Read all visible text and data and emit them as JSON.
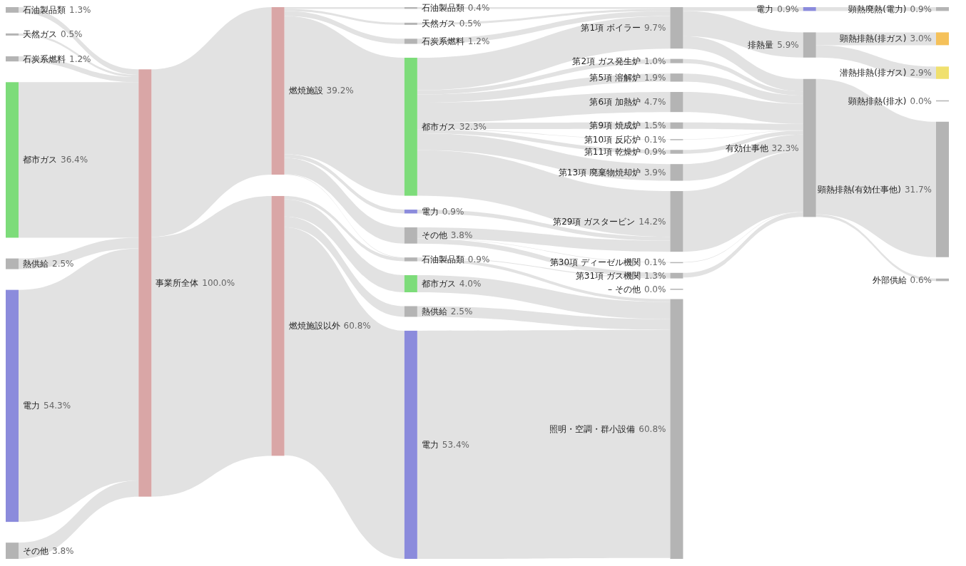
{
  "chart_data": {
    "type": "other",
    "categories": [
      "石油製品類",
      "天然ガス",
      "石炭系燃料",
      "都市ガス",
      "熱供給",
      "電力",
      "その他",
      "事業所全体",
      "燃焼施設",
      "燃焼施設以外",
      "石油製品類",
      "天然ガス",
      "石炭系燃料",
      "都市ガス",
      "電力",
      "その他",
      "石油製品類",
      "都市ガス",
      "熱供給",
      "電力",
      "第1項 ボイラー",
      "第2項 ガス発生炉",
      "第5項 溶解炉",
      "第6項 加熱炉",
      "第9項 焼成炉",
      "第10項 反応炉",
      "第11項 乾燥炉",
      "第13項 廃棄物焼却炉",
      "第29項 ガスタービン",
      "第30項 ディーゼル機関",
      "第31項 ガス機関",
      "– その他",
      "照明・空調・群小設備",
      "電力",
      "排熱量",
      "有効仕事他",
      "顕熱廃熱(電力)",
      "顕熱排熱(排ガス)",
      "潜熱排熱(排ガス)",
      "顕熱排熱(排水)",
      "顕熱排熱(有効仕事他)",
      "外部供給"
    ],
    "colors": [
      "#b4b4b4",
      "#b4b4b4",
      "#b4b4b4",
      "#7ddc7a",
      "#b4b4b4",
      "#8b8bdc",
      "#b4b4b4",
      "#d9a6a6",
      "#d9a6a6",
      "#d9a6a6",
      "#b4b4b4",
      "#b4b4b4",
      "#b4b4b4",
      "#7ddc7a",
      "#8b8bdc",
      "#b4b4b4",
      "#b4b4b4",
      "#7ddc7a",
      "#b4b4b4",
      "#8b8bdc",
      "#b4b4b4",
      "#b4b4b4",
      "#b4b4b4",
      "#b4b4b4",
      "#b4b4b4",
      "#b4b4b4",
      "#b4b4b4",
      "#b4b4b4",
      "#b4b4b4",
      "#b4b4b4",
      "#b4b4b4",
      "#b4b4b4",
      "#b4b4b4",
      "#8b8bdc",
      "#b4b4b4",
      "#b4b4b4",
      "#b4b4b4",
      "#f5c15a",
      "#f0e06e",
      "#b4b4b4",
      "#b4b4b4",
      "#b4b4b4"
    ],
    "series": [
      {
        "values": [
          1.3,
          0.5,
          1.2,
          36.4,
          2.5,
          54.3,
          3.8,
          null,
          null,
          null,
          null,
          null,
          null,
          null,
          null,
          null,
          null,
          null,
          null,
          null,
          null,
          null,
          null,
          null,
          null,
          null,
          null,
          null,
          null,
          null,
          null,
          null,
          null,
          null,
          null,
          null,
          null,
          null,
          null,
          null,
          null,
          null
        ],
        "value_labels": [
          "1.3%",
          "0.5%",
          "1.2%",
          "36.4%",
          "2.5%",
          "54.3%",
          "3.8%",
          null,
          null,
          null,
          null,
          null,
          null,
          null,
          null,
          null,
          null,
          null,
          null,
          null,
          null,
          null,
          null,
          null,
          null,
          null,
          null,
          null,
          null,
          null,
          null,
          null,
          null,
          null,
          null,
          null,
          null,
          null,
          null,
          null,
          null,
          null
        ]
      },
      {
        "values": [
          null,
          null,
          null,
          null,
          null,
          null,
          null,
          100.0,
          null,
          null,
          null,
          null,
          null,
          null,
          null,
          null,
          null,
          null,
          null,
          null,
          null,
          null,
          null,
          null,
          null,
          null,
          null,
          null,
          null,
          null,
          null,
          null,
          null,
          null,
          null,
          null,
          null,
          null,
          null,
          null,
          null,
          null
        ],
        "value_labels": [
          null,
          null,
          null,
          null,
          null,
          null,
          null,
          "100.0%",
          null,
          null,
          null,
          null,
          null,
          null,
          null,
          null,
          null,
          null,
          null,
          null,
          null,
          null,
          null,
          null,
          null,
          null,
          null,
          null,
          null,
          null,
          null,
          null,
          null,
          null,
          null,
          null,
          null,
          null,
          null,
          null,
          null,
          null
        ]
      },
      {
        "values": [
          null,
          null,
          null,
          null,
          null,
          null,
          null,
          null,
          39.2,
          60.8,
          null,
          null,
          null,
          null,
          null,
          null,
          null,
          null,
          null,
          null,
          null,
          null,
          null,
          null,
          null,
          null,
          null,
          null,
          null,
          null,
          null,
          null,
          null,
          null,
          null,
          null,
          null,
          null,
          null,
          null,
          null,
          null
        ],
        "value_labels": [
          null,
          null,
          null,
          null,
          null,
          null,
          null,
          null,
          "39.2%",
          "60.8%",
          null,
          null,
          null,
          null,
          null,
          null,
          null,
          null,
          null,
          null,
          null,
          null,
          null,
          null,
          null,
          null,
          null,
          null,
          null,
          null,
          null,
          null,
          null,
          null,
          null,
          null,
          null,
          null,
          null,
          null,
          null,
          null
        ]
      },
      {
        "values": [
          null,
          null,
          null,
          null,
          null,
          null,
          null,
          null,
          null,
          null,
          0.4,
          0.5,
          1.2,
          32.3,
          0.9,
          3.8,
          0.9,
          4.0,
          2.5,
          53.4,
          null,
          null,
          null,
          null,
          null,
          null,
          null,
          null,
          null,
          null,
          null,
          null,
          null,
          null,
          null,
          null,
          null,
          null,
          null,
          null,
          null,
          null
        ],
        "value_labels": [
          null,
          null,
          null,
          null,
          null,
          null,
          null,
          null,
          null,
          null,
          "0.4%",
          "0.5%",
          "1.2%",
          "32.3%",
          "0.9%",
          "3.8%",
          "0.9%",
          "4.0%",
          "2.5%",
          "53.4%",
          null,
          null,
          null,
          null,
          null,
          null,
          null,
          null,
          null,
          null,
          null,
          null,
          null,
          null,
          null,
          null,
          null,
          null,
          null,
          null,
          null,
          null
        ]
      },
      {
        "values": [
          null,
          null,
          null,
          null,
          null,
          null,
          null,
          null,
          null,
          null,
          null,
          null,
          null,
          null,
          null,
          null,
          null,
          null,
          null,
          null,
          9.7,
          1.0,
          1.9,
          4.7,
          1.5,
          0.1,
          0.9,
          3.9,
          14.2,
          0.1,
          1.3,
          0.0,
          60.8,
          null,
          null,
          null,
          null,
          null,
          null,
          null,
          null,
          null
        ],
        "value_labels": [
          null,
          null,
          null,
          null,
          null,
          null,
          null,
          null,
          null,
          null,
          null,
          null,
          null,
          null,
          null,
          null,
          null,
          null,
          null,
          null,
          "9.7%",
          "1.0%",
          "1.9%",
          "4.7%",
          "1.5%",
          "0.1%",
          "0.9%",
          "3.9%",
          "14.2%",
          "0.1%",
          "1.3%",
          "0.0%",
          "60.8%",
          null,
          null,
          null,
          null,
          null,
          null,
          null,
          null,
          null
        ]
      },
      {
        "values": [
          null,
          null,
          null,
          null,
          null,
          null,
          null,
          null,
          null,
          null,
          null,
          null,
          null,
          null,
          null,
          null,
          null,
          null,
          null,
          null,
          null,
          null,
          null,
          null,
          null,
          null,
          null,
          null,
          null,
          null,
          null,
          null,
          null,
          0.9,
          5.9,
          32.3,
          null,
          null,
          null,
          null,
          null,
          null
        ],
        "value_labels": [
          null,
          null,
          null,
          null,
          null,
          null,
          null,
          null,
          null,
          null,
          null,
          null,
          null,
          null,
          null,
          null,
          null,
          null,
          null,
          null,
          null,
          null,
          null,
          null,
          null,
          null,
          null,
          null,
          null,
          null,
          null,
          null,
          null,
          "0.9%",
          "5.9%",
          "32.3%",
          null,
          null,
          null,
          null,
          null,
          null
        ]
      },
      {
        "values": [
          null,
          null,
          null,
          null,
          null,
          null,
          null,
          null,
          null,
          null,
          null,
          null,
          null,
          null,
          null,
          null,
          null,
          null,
          null,
          null,
          null,
          null,
          null,
          null,
          null,
          null,
          null,
          null,
          null,
          null,
          null,
          null,
          null,
          null,
          null,
          null,
          0.9,
          3.0,
          2.9,
          0.0,
          31.7,
          0.6
        ],
        "value_labels": [
          null,
          null,
          null,
          null,
          null,
          null,
          null,
          null,
          null,
          null,
          null,
          null,
          null,
          null,
          null,
          null,
          null,
          null,
          null,
          null,
          null,
          null,
          null,
          null,
          null,
          null,
          null,
          null,
          null,
          null,
          null,
          null,
          null,
          null,
          null,
          null,
          "0.9%",
          "3.0%",
          "2.9%",
          "0.0%",
          "31.7%",
          "0.6%"
        ]
      }
    ]
  }
}
